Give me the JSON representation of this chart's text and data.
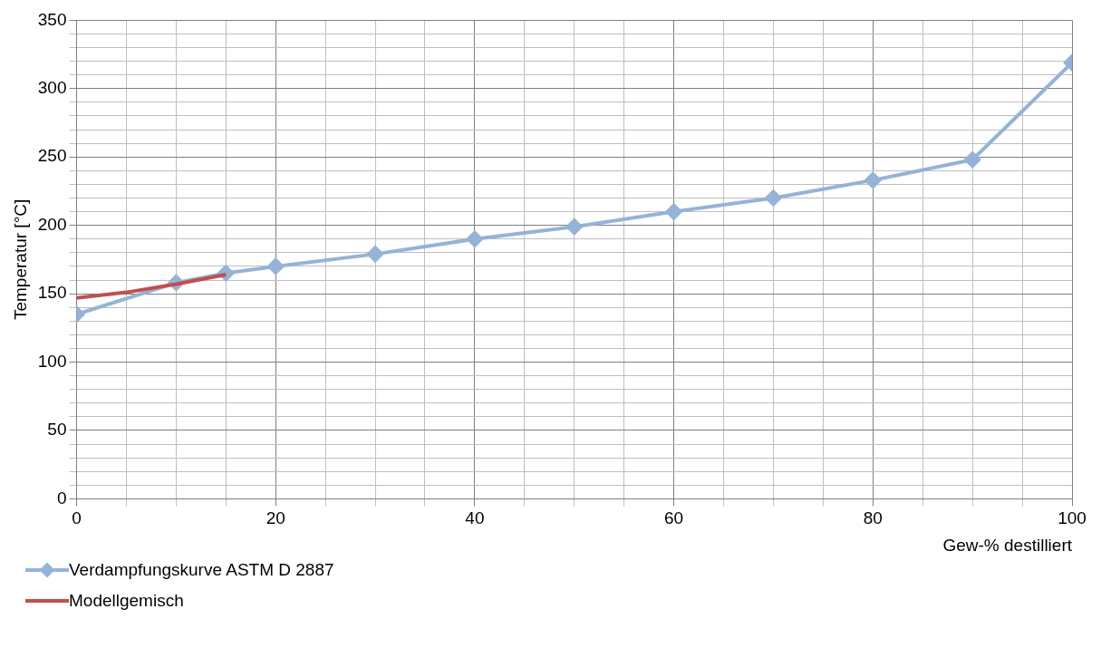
{
  "chart_data": {
    "type": "line",
    "xlabel": "Gew-% destilliert",
    "ylabel": "Temperatur [°C]",
    "xlim": [
      0,
      100
    ],
    "ylim": [
      0,
      350
    ],
    "xticks": [
      0,
      {
        "value": 5,
        "label": null
      },
      {
        "value": 10,
        "label": null
      },
      {
        "value": 15,
        "label": null
      },
      20,
      {
        "value": 25,
        "label": null
      },
      {
        "value": 30,
        "label": null
      },
      {
        "value": 35,
        "label": null
      },
      40,
      {
        "value": 45,
        "label": null
      },
      {
        "value": 50,
        "label": null
      },
      {
        "value": 55,
        "label": null
      },
      60,
      {
        "value": 65,
        "label": null
      },
      {
        "value": 70,
        "label": null
      },
      {
        "value": 75,
        "label": null
      },
      80,
      {
        "value": 85,
        "label": null
      },
      {
        "value": 90,
        "label": null
      },
      {
        "value": 95,
        "label": null
      },
      100
    ],
    "yticks": [
      0,
      {
        "value": 10,
        "label": null
      },
      {
        "value": 20,
        "label": null
      },
      {
        "value": 30,
        "label": null
      },
      {
        "value": 40,
        "label": null
      },
      50,
      {
        "value": 60,
        "label": null
      },
      {
        "value": 70,
        "label": null
      },
      {
        "value": 80,
        "label": null
      },
      {
        "value": 90,
        "label": null
      },
      100,
      {
        "value": 110,
        "label": null
      },
      {
        "value": 120,
        "label": null
      },
      {
        "value": 130,
        "label": null
      },
      {
        "value": 140,
        "label": null
      },
      150,
      {
        "value": 160,
        "label": null
      },
      {
        "value": 170,
        "label": null
      },
      {
        "value": 180,
        "label": null
      },
      {
        "value": 190,
        "label": null
      },
      200,
      {
        "value": 210,
        "label": null
      },
      {
        "value": 220,
        "label": null
      },
      {
        "value": 230,
        "label": null
      },
      {
        "value": 240,
        "label": null
      },
      250,
      {
        "value": 260,
        "label": null
      },
      {
        "value": 270,
        "label": null
      },
      {
        "value": 280,
        "label": null
      },
      {
        "value": 290,
        "label": null
      },
      300,
      {
        "value": 310,
        "label": null
      },
      {
        "value": 320,
        "label": null
      },
      {
        "value": 330,
        "label": null
      },
      {
        "value": 340,
        "label": null
      },
      350
    ],
    "grid": true,
    "legend": "bottom left",
    "series": [
      {
        "name": "Verdampfungskurve ASTM D 2887",
        "color": "#95b3d7",
        "marker": "diamond",
        "x": [
          0,
          10,
          15,
          20,
          30,
          40,
          50,
          60,
          70,
          80,
          90,
          100
        ],
        "values": [
          135,
          158,
          165,
          170,
          179,
          190,
          199,
          210,
          220,
          233,
          248,
          319
        ]
      },
      {
        "name": "Modellgemisch",
        "color": "#c0504d",
        "marker": "none",
        "x": [
          0,
          5,
          10,
          15
        ],
        "values": [
          147,
          151,
          157,
          164
        ]
      }
    ]
  }
}
